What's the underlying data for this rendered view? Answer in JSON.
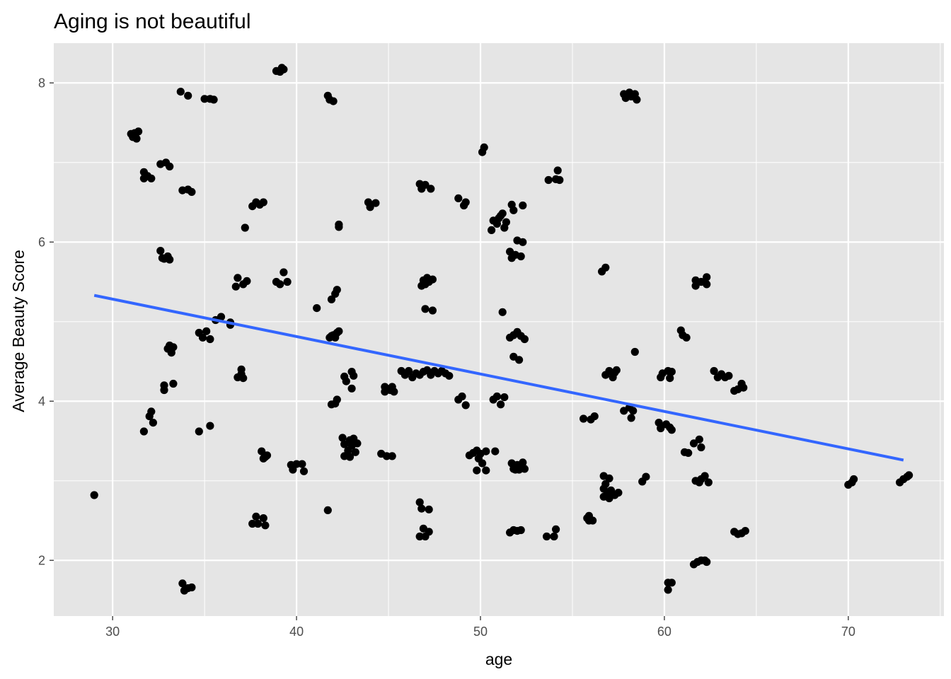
{
  "chart_data": {
    "type": "scatter",
    "title": "Aging is not beautiful",
    "xlabel": "age",
    "ylabel": "Average Beauty Score",
    "xlim": [
      26.8,
      75.2
    ],
    "ylim": [
      1.3,
      8.5
    ],
    "xticks": [
      30,
      40,
      50,
      60,
      70
    ],
    "yticks": [
      2,
      4,
      6,
      8
    ],
    "grid": true,
    "colors": {
      "panel": "#e5e5e5",
      "grid": "#ffffff",
      "points": "#000000",
      "fit": "#3366ff",
      "tick": "#4d4d4d"
    },
    "fit_line": {
      "method": "lm",
      "x": [
        29,
        73
      ],
      "y": [
        5.33,
        3.26
      ]
    },
    "points": [
      [
        29.0,
        2.82
      ],
      [
        31.0,
        7.36
      ],
      [
        31.1,
        7.32
      ],
      [
        31.2,
        7.37
      ],
      [
        31.3,
        7.3
      ],
      [
        31.4,
        7.39
      ],
      [
        31.7,
        6.88
      ],
      [
        31.7,
        6.8
      ],
      [
        31.9,
        6.83
      ],
      [
        32.1,
        6.8
      ],
      [
        31.7,
        3.62
      ],
      [
        32.0,
        3.81
      ],
      [
        32.1,
        3.87
      ],
      [
        32.2,
        3.73
      ],
      [
        32.6,
        5.89
      ],
      [
        32.7,
        5.8
      ],
      [
        32.8,
        5.79
      ],
      [
        33.0,
        5.82
      ],
      [
        33.1,
        5.78
      ],
      [
        32.6,
        6.98
      ],
      [
        32.9,
        7.0
      ],
      [
        33.1,
        6.95
      ],
      [
        32.8,
        4.2
      ],
      [
        32.8,
        4.14
      ],
      [
        33.0,
        4.66
      ],
      [
        33.1,
        4.7
      ],
      [
        33.2,
        4.61
      ],
      [
        33.3,
        4.68
      ],
      [
        33.3,
        4.22
      ],
      [
        33.7,
        7.89
      ],
      [
        34.1,
        7.84
      ],
      [
        33.8,
        6.65
      ],
      [
        34.1,
        6.66
      ],
      [
        34.3,
        6.63
      ],
      [
        33.8,
        1.71
      ],
      [
        33.9,
        1.62
      ],
      [
        34.1,
        1.65
      ],
      [
        34.3,
        1.66
      ],
      [
        34.7,
        4.86
      ],
      [
        34.9,
        4.8
      ],
      [
        35.1,
        4.88
      ],
      [
        35.3,
        4.78
      ],
      [
        34.7,
        3.62
      ],
      [
        35.3,
        3.69
      ],
      [
        35.0,
        7.8
      ],
      [
        35.3,
        7.8
      ],
      [
        35.5,
        7.79
      ],
      [
        35.6,
        5.02
      ],
      [
        35.9,
        5.06
      ],
      [
        36.4,
        4.96
      ],
      [
        36.4,
        4.99
      ],
      [
        36.7,
        5.44
      ],
      [
        36.8,
        5.55
      ],
      [
        36.8,
        4.3
      ],
      [
        37.0,
        4.34
      ],
      [
        37.0,
        4.4
      ],
      [
        37.1,
        4.29
      ],
      [
        37.1,
        5.47
      ],
      [
        37.3,
        5.51
      ],
      [
        37.2,
        6.18
      ],
      [
        37.6,
        6.45
      ],
      [
        37.8,
        6.5
      ],
      [
        38.0,
        6.47
      ],
      [
        38.2,
        6.5
      ],
      [
        37.6,
        2.46
      ],
      [
        37.8,
        2.55
      ],
      [
        37.9,
        2.46
      ],
      [
        38.2,
        2.53
      ],
      [
        38.3,
        2.44
      ],
      [
        38.1,
        3.37
      ],
      [
        38.2,
        3.28
      ],
      [
        38.3,
        3.3
      ],
      [
        38.4,
        3.32
      ],
      [
        38.9,
        8.15
      ],
      [
        39.1,
        8.14
      ],
      [
        39.2,
        8.19
      ],
      [
        39.3,
        8.17
      ],
      [
        38.9,
        5.5
      ],
      [
        39.1,
        5.47
      ],
      [
        39.3,
        5.62
      ],
      [
        39.5,
        5.5
      ],
      [
        39.7,
        3.2
      ],
      [
        39.8,
        3.14
      ],
      [
        40.0,
        3.21
      ],
      [
        40.3,
        3.21
      ],
      [
        40.4,
        3.12
      ],
      [
        41.1,
        5.17
      ],
      [
        41.7,
        7.84
      ],
      [
        41.8,
        7.79
      ],
      [
        42.0,
        7.77
      ],
      [
        41.8,
        4.8
      ],
      [
        41.9,
        4.82
      ],
      [
        42.0,
        4.83
      ],
      [
        42.1,
        4.8
      ],
      [
        42.2,
        4.86
      ],
      [
        42.3,
        4.88
      ],
      [
        41.9,
        5.28
      ],
      [
        42.1,
        5.35
      ],
      [
        42.2,
        5.4
      ],
      [
        42.3,
        6.22
      ],
      [
        42.3,
        6.19
      ],
      [
        41.9,
        3.96
      ],
      [
        42.1,
        3.97
      ],
      [
        42.2,
        4.02
      ],
      [
        41.7,
        2.63
      ],
      [
        42.6,
        4.31
      ],
      [
        42.7,
        4.25
      ],
      [
        43.0,
        4.37
      ],
      [
        43.1,
        4.32
      ],
      [
        43.0,
        4.16
      ],
      [
        42.5,
        3.54
      ],
      [
        42.6,
        3.46
      ],
      [
        42.8,
        3.38
      ],
      [
        42.9,
        3.51
      ],
      [
        43.0,
        3.44
      ],
      [
        43.1,
        3.53
      ],
      [
        43.2,
        3.36
      ],
      [
        43.3,
        3.47
      ],
      [
        42.6,
        3.31
      ],
      [
        42.9,
        3.3
      ],
      [
        43.9,
        6.5
      ],
      [
        44.0,
        6.44
      ],
      [
        44.3,
        6.49
      ],
      [
        44.6,
        3.34
      ],
      [
        44.9,
        3.31
      ],
      [
        45.2,
        3.31
      ],
      [
        44.8,
        4.18
      ],
      [
        44.8,
        4.12
      ],
      [
        45.1,
        4.14
      ],
      [
        45.2,
        4.18
      ],
      [
        45.3,
        4.12
      ],
      [
        45.7,
        4.38
      ],
      [
        45.9,
        4.33
      ],
      [
        46.1,
        4.38
      ],
      [
        46.3,
        4.3
      ],
      [
        46.5,
        4.35
      ],
      [
        46.7,
        4.33
      ],
      [
        46.9,
        4.37
      ],
      [
        47.1,
        4.39
      ],
      [
        47.3,
        4.33
      ],
      [
        47.5,
        4.38
      ],
      [
        47.7,
        4.35
      ],
      [
        47.9,
        4.38
      ],
      [
        48.1,
        4.35
      ],
      [
        48.3,
        4.32
      ],
      [
        46.7,
        6.73
      ],
      [
        46.8,
        6.67
      ],
      [
        47.0,
        6.72
      ],
      [
        47.3,
        6.67
      ],
      [
        46.8,
        5.45
      ],
      [
        46.9,
        5.52
      ],
      [
        47.0,
        5.47
      ],
      [
        47.1,
        5.55
      ],
      [
        47.2,
        5.5
      ],
      [
        47.4,
        5.53
      ],
      [
        47.0,
        5.16
      ],
      [
        47.4,
        5.14
      ],
      [
        46.7,
        2.73
      ],
      [
        46.8,
        2.65
      ],
      [
        47.2,
        2.64
      ],
      [
        46.7,
        2.3
      ],
      [
        46.9,
        2.4
      ],
      [
        47.0,
        2.3
      ],
      [
        47.2,
        2.36
      ],
      [
        48.8,
        6.55
      ],
      [
        49.2,
        6.5
      ],
      [
        49.1,
        6.46
      ],
      [
        48.8,
        4.02
      ],
      [
        49.0,
        4.06
      ],
      [
        49.2,
        3.95
      ],
      [
        49.4,
        3.32
      ],
      [
        49.6,
        3.35
      ],
      [
        49.8,
        3.38
      ],
      [
        49.9,
        3.28
      ],
      [
        50.0,
        3.34
      ],
      [
        50.1,
        3.22
      ],
      [
        50.3,
        3.37
      ],
      [
        49.8,
        3.13
      ],
      [
        50.3,
        3.13
      ],
      [
        50.8,
        3.37
      ],
      [
        50.1,
        7.13
      ],
      [
        50.2,
        7.19
      ],
      [
        50.7,
        4.02
      ],
      [
        50.9,
        4.06
      ],
      [
        51.1,
        3.96
      ],
      [
        51.3,
        4.05
      ],
      [
        50.6,
        6.15
      ],
      [
        50.7,
        6.27
      ],
      [
        50.9,
        6.23
      ],
      [
        51.0,
        6.3
      ],
      [
        51.1,
        6.33
      ],
      [
        51.2,
        6.36
      ],
      [
        51.3,
        6.18
      ],
      [
        51.4,
        6.25
      ],
      [
        51.7,
        6.47
      ],
      [
        51.8,
        6.4
      ],
      [
        52.3,
        6.46
      ],
      [
        51.2,
        5.12
      ],
      [
        51.6,
        5.88
      ],
      [
        51.7,
        5.8
      ],
      [
        51.9,
        5.84
      ],
      [
        52.0,
        6.02
      ],
      [
        52.2,
        5.82
      ],
      [
        52.3,
        6.0
      ],
      [
        51.6,
        4.8
      ],
      [
        51.8,
        4.83
      ],
      [
        52.0,
        4.87
      ],
      [
        52.2,
        4.82
      ],
      [
        52.4,
        4.78
      ],
      [
        51.8,
        4.56
      ],
      [
        52.1,
        4.52
      ],
      [
        51.7,
        3.22
      ],
      [
        51.8,
        3.15
      ],
      [
        51.9,
        3.14
      ],
      [
        52.0,
        3.2
      ],
      [
        52.1,
        3.14
      ],
      [
        52.2,
        3.18
      ],
      [
        52.3,
        3.23
      ],
      [
        52.4,
        3.15
      ],
      [
        51.6,
        2.35
      ],
      [
        51.8,
        2.38
      ],
      [
        52.0,
        2.37
      ],
      [
        52.2,
        2.38
      ],
      [
        53.7,
        6.78
      ],
      [
        54.1,
        6.79
      ],
      [
        54.2,
        6.9
      ],
      [
        54.3,
        6.78
      ],
      [
        53.6,
        2.3
      ],
      [
        54.0,
        2.3
      ],
      [
        54.1,
        2.39
      ],
      [
        55.6,
        3.78
      ],
      [
        56.0,
        3.77
      ],
      [
        56.2,
        3.81
      ],
      [
        55.8,
        2.53
      ],
      [
        55.9,
        2.5
      ],
      [
        56.1,
        2.5
      ],
      [
        55.9,
        2.56
      ],
      [
        56.6,
        5.63
      ],
      [
        56.8,
        5.68
      ],
      [
        56.7,
        3.06
      ],
      [
        56.8,
        2.96
      ],
      [
        57.0,
        3.03
      ],
      [
        56.7,
        2.9
      ],
      [
        56.9,
        2.85
      ],
      [
        57.1,
        2.88
      ],
      [
        57.3,
        2.82
      ],
      [
        57.5,
        2.85
      ],
      [
        56.7,
        2.8
      ],
      [
        57.0,
        2.78
      ],
      [
        56.8,
        4.33
      ],
      [
        57.0,
        4.38
      ],
      [
        57.2,
        4.3
      ],
      [
        57.3,
        4.36
      ],
      [
        57.4,
        4.39
      ],
      [
        57.8,
        7.86
      ],
      [
        57.9,
        7.81
      ],
      [
        58.1,
        7.88
      ],
      [
        58.2,
        7.83
      ],
      [
        58.4,
        7.86
      ],
      [
        58.5,
        7.79
      ],
      [
        57.8,
        3.88
      ],
      [
        58.1,
        3.92
      ],
      [
        58.2,
        3.79
      ],
      [
        58.3,
        3.88
      ],
      [
        58.4,
        4.62
      ],
      [
        58.8,
        2.99
      ],
      [
        59.0,
        3.05
      ],
      [
        59.7,
        3.73
      ],
      [
        59.8,
        3.66
      ],
      [
        60.1,
        3.71
      ],
      [
        60.3,
        3.67
      ],
      [
        60.4,
        3.64
      ],
      [
        59.8,
        4.3
      ],
      [
        59.9,
        4.35
      ],
      [
        60.2,
        4.38
      ],
      [
        60.3,
        4.29
      ],
      [
        60.4,
        4.37
      ],
      [
        60.2,
        1.72
      ],
      [
        60.2,
        1.63
      ],
      [
        60.4,
        1.72
      ],
      [
        60.9,
        4.89
      ],
      [
        61.0,
        4.83
      ],
      [
        61.2,
        4.8
      ],
      [
        61.1,
        3.36
      ],
      [
        61.3,
        3.35
      ],
      [
        61.6,
        3.47
      ],
      [
        61.9,
        3.52
      ],
      [
        62.0,
        3.42
      ],
      [
        61.7,
        5.52
      ],
      [
        61.7,
        5.45
      ],
      [
        62.0,
        5.5
      ],
      [
        62.3,
        5.56
      ],
      [
        62.3,
        5.47
      ],
      [
        61.7,
        3.0
      ],
      [
        61.9,
        2.98
      ],
      [
        62.0,
        3.02
      ],
      [
        62.2,
        3.06
      ],
      [
        62.4,
        2.98
      ],
      [
        61.6,
        1.95
      ],
      [
        61.8,
        1.98
      ],
      [
        62.0,
        2.0
      ],
      [
        62.2,
        2.0
      ],
      [
        62.3,
        1.98
      ],
      [
        62.7,
        4.38
      ],
      [
        62.9,
        4.3
      ],
      [
        63.1,
        4.34
      ],
      [
        63.3,
        4.3
      ],
      [
        63.5,
        4.32
      ],
      [
        63.8,
        4.13
      ],
      [
        64.0,
        4.15
      ],
      [
        64.2,
        4.22
      ],
      [
        64.3,
        4.17
      ],
      [
        63.8,
        2.36
      ],
      [
        64.0,
        2.33
      ],
      [
        64.2,
        2.34
      ],
      [
        64.4,
        2.37
      ],
      [
        70.0,
        2.95
      ],
      [
        70.2,
        2.98
      ],
      [
        70.3,
        3.02
      ],
      [
        72.8,
        2.98
      ],
      [
        73.0,
        3.02
      ],
      [
        73.2,
        3.05
      ],
      [
        73.3,
        3.07
      ]
    ]
  }
}
